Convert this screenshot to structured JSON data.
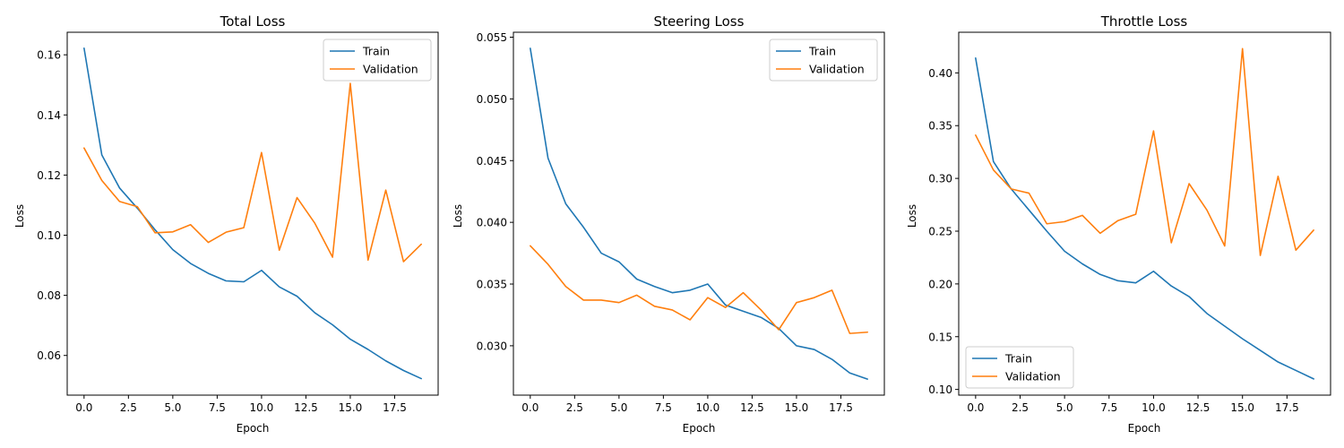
{
  "colors": {
    "train": "#1f77b4",
    "validation": "#ff7f0e"
  },
  "chart_data": [
    {
      "type": "line",
      "title": "Total Loss",
      "xlabel": "Epoch",
      "ylabel": "Loss",
      "xlim": [
        -0.95,
        19.95
      ],
      "ylim": [
        0.0468,
        0.1675
      ],
      "xticks": [
        0,
        2.5,
        5,
        7.5,
        10,
        12.5,
        15,
        17.5
      ],
      "xtick_labels": [
        "0.0",
        "2.5",
        "5.0",
        "7.5",
        "10.0",
        "12.5",
        "15.0",
        "17.5"
      ],
      "yticks": [
        0.06,
        0.08,
        0.1,
        0.12,
        0.14,
        0.16
      ],
      "ytick_labels": [
        "0.06",
        "0.08",
        "0.10",
        "0.12",
        "0.14",
        "0.16"
      ],
      "legend_position": "top-right",
      "x": [
        0,
        1,
        2,
        3,
        4,
        5,
        6,
        7,
        8,
        9,
        10,
        11,
        12,
        13,
        14,
        15,
        16,
        17,
        18,
        19
      ],
      "series": [
        {
          "name": "Train",
          "color": "#1f77b4",
          "values": [
            0.1622,
            0.1267,
            0.1157,
            0.109,
            0.1018,
            0.0952,
            0.0906,
            0.0873,
            0.0848,
            0.0845,
            0.0883,
            0.0828,
            0.0797,
            0.0742,
            0.0702,
            0.0654,
            0.062,
            0.0582,
            0.055,
            0.0523
          ]
        },
        {
          "name": "Validation",
          "color": "#ff7f0e",
          "values": [
            0.129,
            0.1182,
            0.1112,
            0.1095,
            0.1008,
            0.1011,
            0.1035,
            0.0976,
            0.101,
            0.1025,
            0.1275,
            0.095,
            0.1125,
            0.104,
            0.0927,
            0.1505,
            0.0917,
            0.115,
            0.0912,
            0.097
          ]
        }
      ]
    },
    {
      "type": "line",
      "title": "Steering Loss",
      "xlabel": "Epoch",
      "ylabel": "Loss",
      "xlim": [
        -0.95,
        19.95
      ],
      "ylim": [
        0.026,
        0.0554
      ],
      "xticks": [
        0,
        2.5,
        5,
        7.5,
        10,
        12.5,
        15,
        17.5
      ],
      "xtick_labels": [
        "0.0",
        "2.5",
        "5.0",
        "7.5",
        "10.0",
        "12.5",
        "15.0",
        "17.5"
      ],
      "yticks": [
        0.03,
        0.035,
        0.04,
        0.045,
        0.05,
        0.055
      ],
      "ytick_labels": [
        "0.030",
        "0.035",
        "0.040",
        "0.045",
        "0.050",
        "0.055"
      ],
      "legend_position": "top-right",
      "x": [
        0,
        1,
        2,
        3,
        4,
        5,
        6,
        7,
        8,
        9,
        10,
        11,
        12,
        13,
        14,
        15,
        16,
        17,
        18,
        19
      ],
      "series": [
        {
          "name": "Train",
          "color": "#1f77b4",
          "values": [
            0.0541,
            0.0452,
            0.0415,
            0.0396,
            0.0375,
            0.0368,
            0.0354,
            0.0348,
            0.0343,
            0.0345,
            0.035,
            0.0333,
            0.0328,
            0.0323,
            0.0314,
            0.03,
            0.0297,
            0.0289,
            0.0278,
            0.0273
          ]
        },
        {
          "name": "Validation",
          "color": "#ff7f0e",
          "values": [
            0.0381,
            0.0366,
            0.0348,
            0.0337,
            0.0337,
            0.0335,
            0.0341,
            0.0332,
            0.0329,
            0.0321,
            0.0339,
            0.0331,
            0.0343,
            0.0329,
            0.0313,
            0.0335,
            0.0339,
            0.0345,
            0.031,
            0.0311
          ]
        }
      ]
    },
    {
      "type": "line",
      "title": "Throttle Loss",
      "xlabel": "Epoch",
      "ylabel": "Loss",
      "xlim": [
        -0.95,
        19.95
      ],
      "ylim": [
        0.0946,
        0.4385
      ],
      "xticks": [
        0,
        2.5,
        5,
        7.5,
        10,
        12.5,
        15,
        17.5
      ],
      "xtick_labels": [
        "0.0",
        "2.5",
        "5.0",
        "7.5",
        "10.0",
        "12.5",
        "15.0",
        "17.5"
      ],
      "yticks": [
        0.1,
        0.15,
        0.2,
        0.25,
        0.3,
        0.35,
        0.4
      ],
      "ytick_labels": [
        "0.10",
        "0.15",
        "0.20",
        "0.25",
        "0.30",
        "0.35",
        "0.40"
      ],
      "legend_position": "bottom-left",
      "x": [
        0,
        1,
        2,
        3,
        4,
        5,
        6,
        7,
        8,
        9,
        10,
        11,
        12,
        13,
        14,
        15,
        16,
        17,
        18,
        19
      ],
      "series": [
        {
          "name": "Train",
          "color": "#1f77b4",
          "values": [
            0.414,
            0.316,
            0.29,
            0.27,
            0.25,
            0.231,
            0.219,
            0.209,
            0.203,
            0.201,
            0.212,
            0.198,
            0.188,
            0.172,
            0.16,
            0.148,
            0.137,
            0.126,
            0.118,
            0.11
          ]
        },
        {
          "name": "Validation",
          "color": "#ff7f0e",
          "values": [
            0.341,
            0.308,
            0.29,
            0.286,
            0.257,
            0.259,
            0.265,
            0.248,
            0.26,
            0.266,
            0.345,
            0.239,
            0.295,
            0.27,
            0.236,
            0.423,
            0.227,
            0.302,
            0.232,
            0.251
          ]
        }
      ]
    }
  ]
}
